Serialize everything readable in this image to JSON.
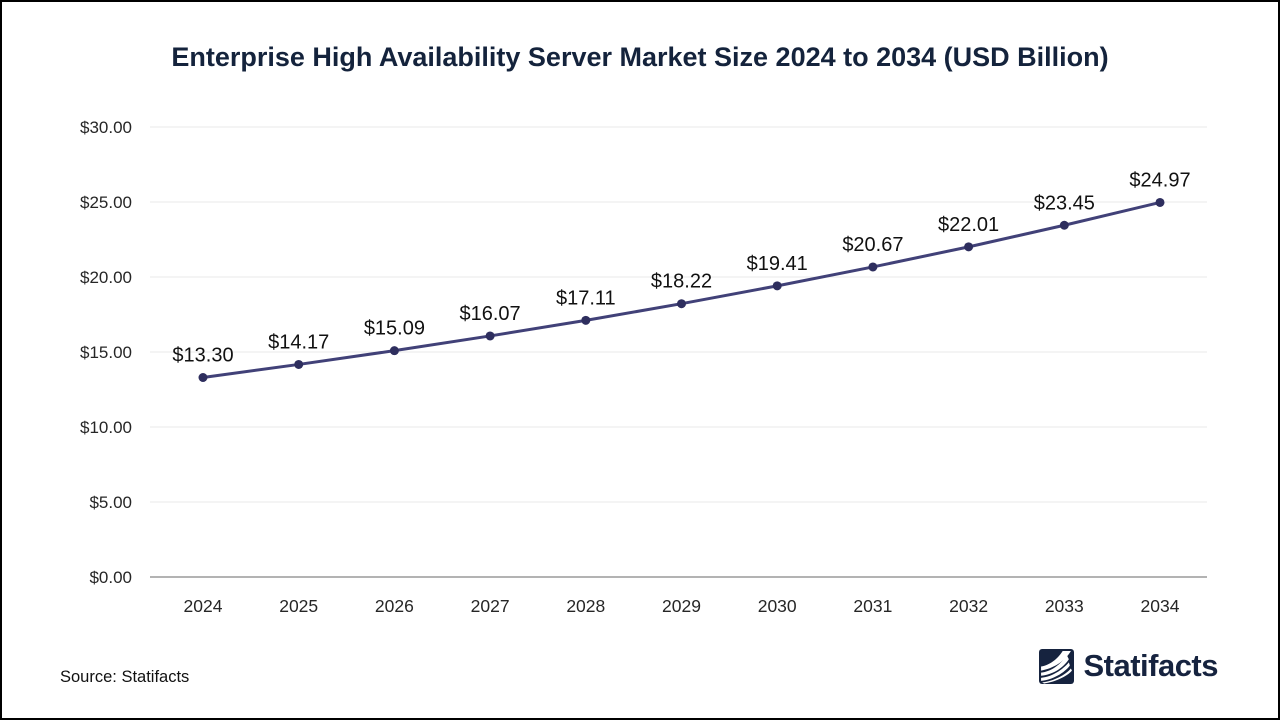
{
  "title": "Enterprise High Availability Server Market Size 2024 to 2034 (USD Billion)",
  "source_label": "Source: Statifacts",
  "logo": {
    "text": "Statifacts",
    "icon": "statifacts-waves-icon"
  },
  "colors": {
    "line": "#414178",
    "marker": "#2E2E5E",
    "title": "#14233C",
    "axis_text": "#262626",
    "data_label": "#111111",
    "grid": "#EAEAEA",
    "axis_line": "#B3B3B3",
    "logo_navy": "#16233F",
    "background": "#FFFFFF",
    "frame_border": "#000000"
  },
  "chart_data": {
    "type": "line",
    "title": "Enterprise High Availability Server Market Size 2024 to 2034 (USD Billion)",
    "categories": [
      "2024",
      "2025",
      "2026",
      "2027",
      "2028",
      "2029",
      "2030",
      "2031",
      "2032",
      "2033",
      "2034"
    ],
    "values": [
      13.3,
      14.17,
      15.09,
      16.07,
      17.11,
      18.22,
      19.41,
      20.67,
      22.01,
      23.45,
      24.97
    ],
    "value_labels": [
      "$13.30",
      "$14.17",
      "$15.09",
      "$16.07",
      "$17.11",
      "$18.22",
      "$19.41",
      "$20.67",
      "$22.01",
      "$23.45",
      "$24.97"
    ],
    "unit": "USD Billion",
    "xlabel": "",
    "ylabel": "",
    "ylim": [
      0,
      30
    ],
    "y_tick_step": 5,
    "y_tick_values": [
      30,
      25,
      20,
      15,
      10,
      5,
      0
    ],
    "y_tick_labels": [
      "$30.00",
      "$25.00",
      "$20.00",
      "$15.00",
      "$10.00",
      "$5.00",
      "$0.00"
    ],
    "grid": true,
    "legend_position": "none",
    "marker": "circle",
    "data_labels_visible": true
  }
}
